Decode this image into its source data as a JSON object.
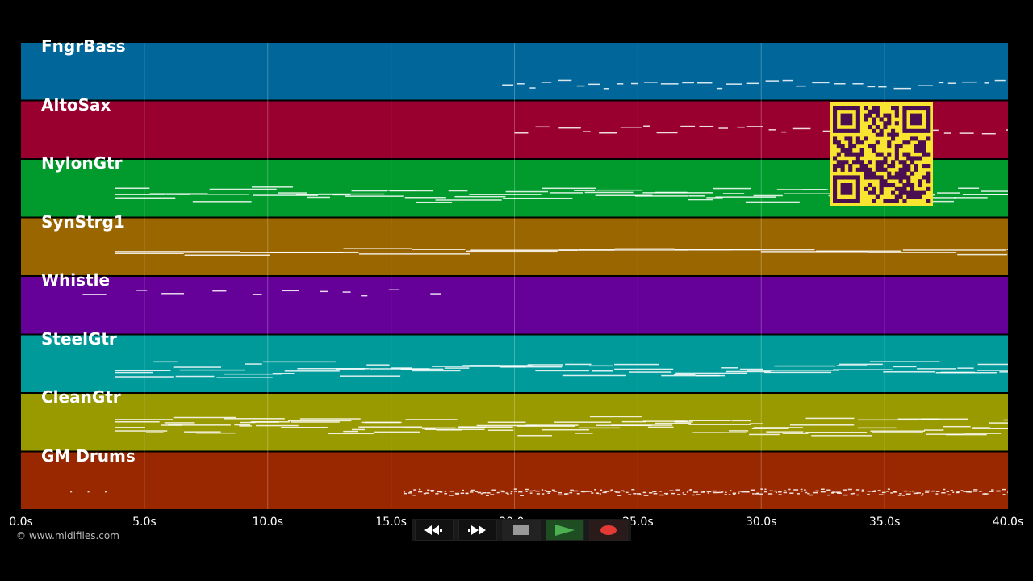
{
  "tracks": [
    {
      "name": "FngrBass",
      "color": "#016699"
    },
    {
      "name": "AltoSax",
      "color": "#990030"
    },
    {
      "name": "NylonGtr",
      "color": "#019A2D"
    },
    {
      "name": "SynStrg1",
      "color": "#996600"
    },
    {
      "name": "Whistle",
      "color": "#650099"
    },
    {
      "name": "SteelGtr",
      "color": "#019A9A"
    },
    {
      "name": "CleanGtr",
      "color": "#999900"
    },
    {
      "name": "GM Drums",
      "color": "#992800"
    }
  ],
  "timeline": {
    "start": 0,
    "end": 40,
    "ticks": [
      "0.0s",
      "5.0s",
      "10.0s",
      "15.0s",
      "20.0s",
      "25.0s",
      "30.0s",
      "35.0s",
      "40.0s"
    ]
  },
  "copyright": "© www.midifiles.com",
  "transport": {
    "rewind_icon": "rewind-icon",
    "forward_icon": "fast-forward-icon",
    "stop_icon": "stop-icon",
    "play_icon": "play-icon",
    "record_icon": "record-icon"
  },
  "overlay": {
    "icon": "qr-code-icon",
    "color": "#F8E531",
    "dark": "#4A0F50"
  }
}
